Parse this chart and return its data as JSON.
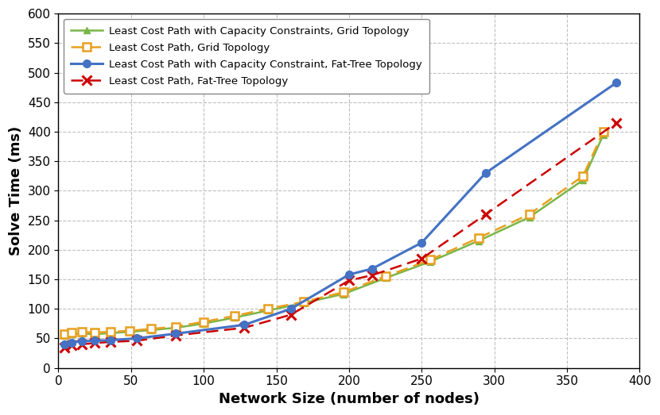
{
  "lcp_grid_x": [
    4,
    9,
    16,
    25,
    36,
    49,
    64,
    81,
    100,
    121,
    144,
    169,
    196,
    225,
    256,
    289,
    324,
    361,
    375
  ],
  "lcp_grid_y": [
    57,
    60,
    61,
    60,
    61,
    63,
    66,
    70,
    78,
    88,
    100,
    112,
    128,
    155,
    183,
    220,
    260,
    325,
    400
  ],
  "lcpcc_grid_x": [
    4,
    9,
    16,
    25,
    36,
    49,
    64,
    81,
    100,
    121,
    144,
    169,
    196,
    225,
    256,
    289,
    324,
    361,
    375
  ],
  "lcpcc_grid_y": [
    54,
    57,
    58,
    57,
    59,
    61,
    64,
    68,
    75,
    85,
    97,
    110,
    125,
    152,
    180,
    215,
    255,
    318,
    395
  ],
  "lcp_fattree_x": [
    4,
    9,
    16,
    25,
    36,
    54,
    81,
    128,
    160,
    200,
    216,
    250,
    294,
    384
  ],
  "lcp_fattree_y": [
    35,
    38,
    40,
    42,
    44,
    46,
    55,
    68,
    90,
    148,
    157,
    185,
    260,
    415
  ],
  "lcpcc_fattree_x": [
    4,
    9,
    16,
    25,
    36,
    54,
    81,
    128,
    160,
    200,
    216,
    250,
    294,
    384
  ],
  "lcpcc_fattree_y": [
    40,
    43,
    45,
    46,
    47,
    50,
    58,
    73,
    100,
    158,
    168,
    212,
    330,
    483
  ],
  "xlabel": "Network Size (number of nodes)",
  "ylabel": "Solve Time (ms)",
  "xlim": [
    0,
    400
  ],
  "ylim": [
    0,
    600
  ],
  "xticks": [
    0,
    50,
    100,
    150,
    200,
    250,
    300,
    350,
    400
  ],
  "yticks": [
    0,
    50,
    100,
    150,
    200,
    250,
    300,
    350,
    400,
    450,
    500,
    550,
    600
  ],
  "legend_lcpcc_grid": "Least Cost Path with Capacity Constraints, Grid Topology",
  "legend_lcp_grid": "Least Cost Path, Grid Topology",
  "legend_lcpcc_fattree": "Least Cost Path with Capacity Constraint, Fat-Tree Topology",
  "legend_lcp_fattree": "Least Cost Path, Fat-Tree Topology",
  "color_grid_orange": "#E8A020",
  "color_grid_green": "#7AB648",
  "color_fattree_blue": "#4472C4",
  "color_fattree_red": "#CC0000",
  "bg_color": "#FFFFFF",
  "grid_color": "#C0C0C0"
}
